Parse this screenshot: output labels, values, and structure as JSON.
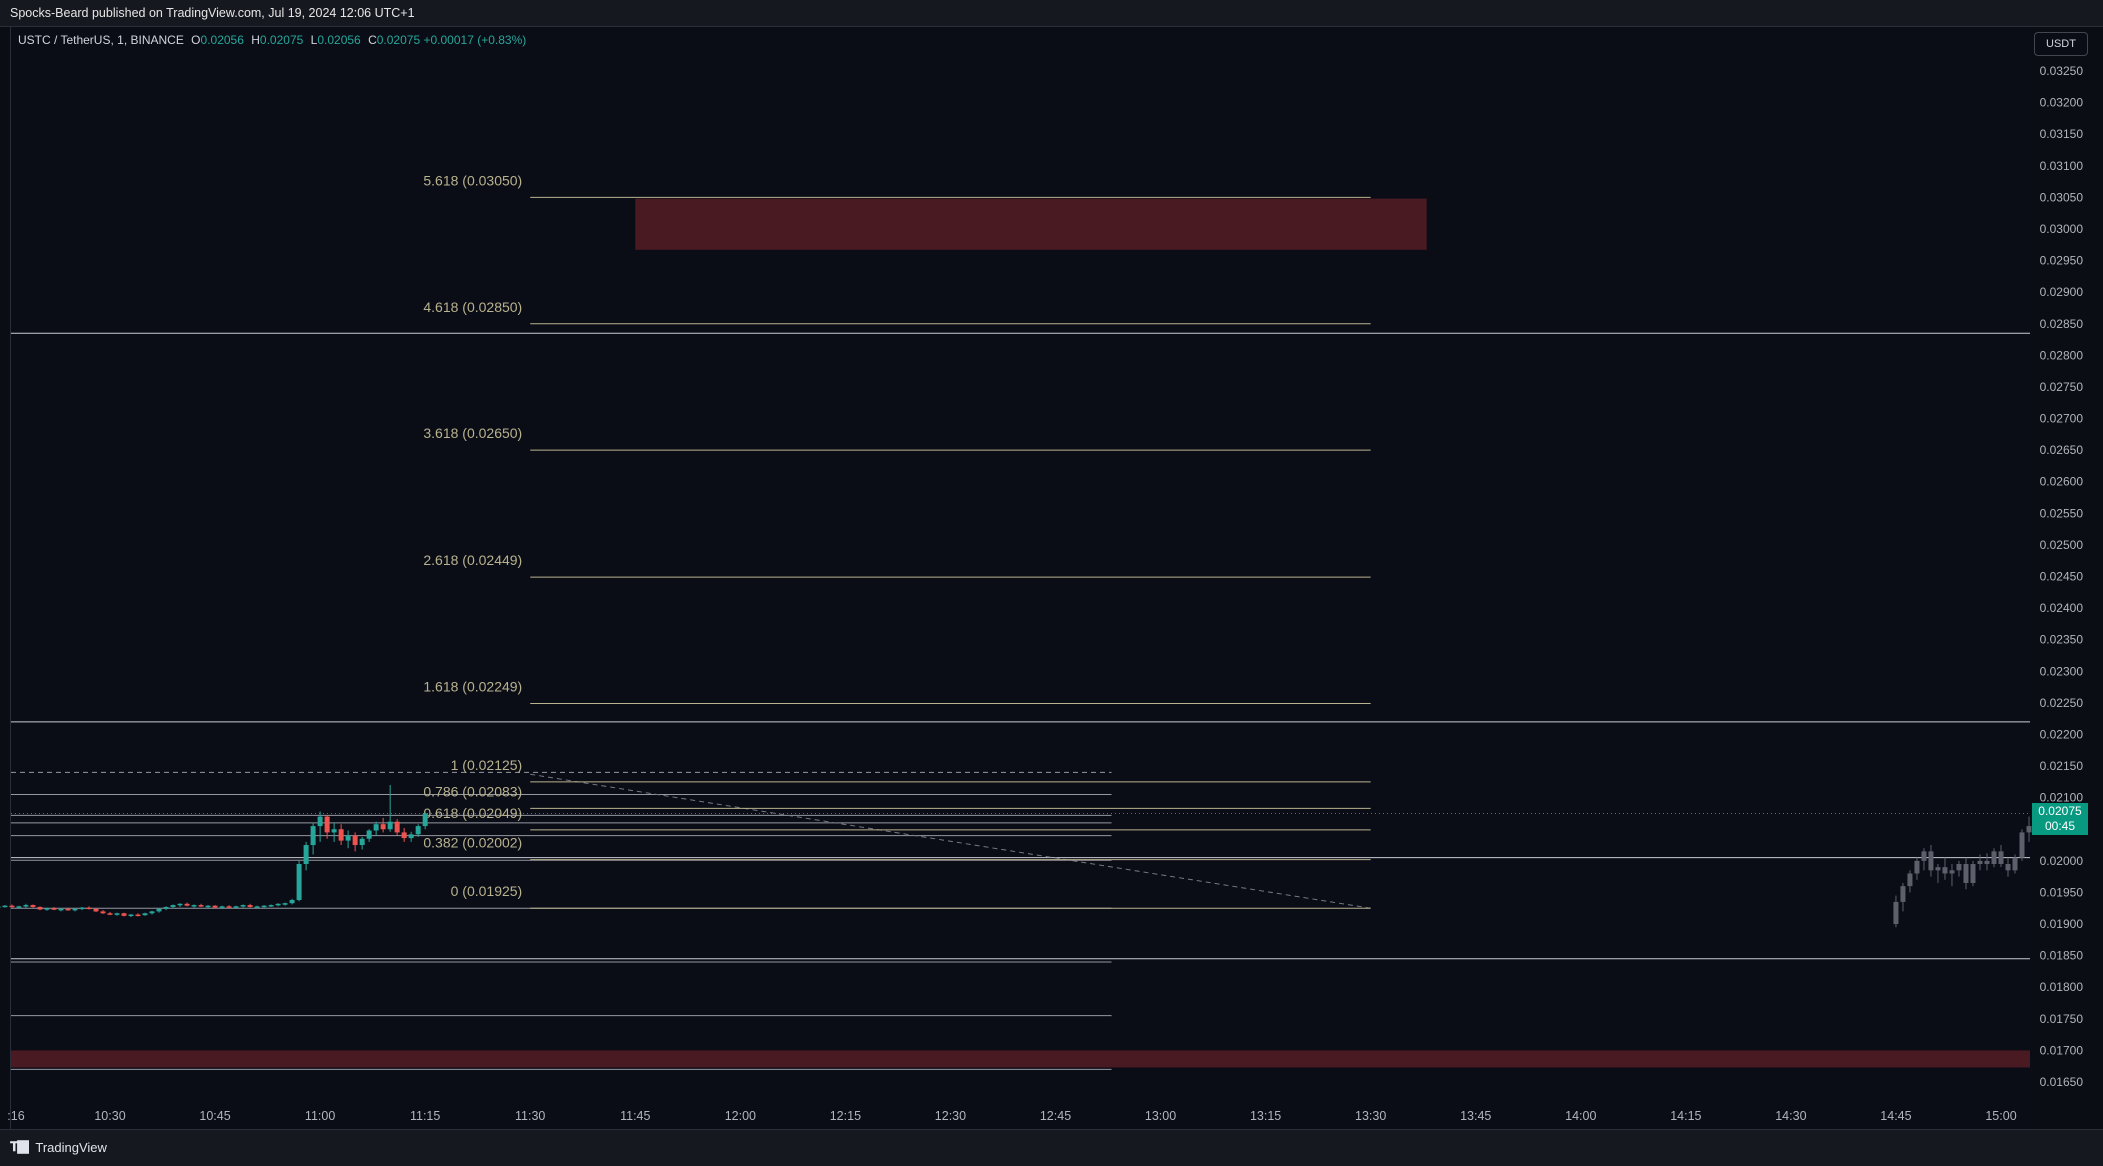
{
  "publish_line": "Spocks-Beard published on TradingView.com, Jul 19, 2024 12:06 UTC+1",
  "symbol": {
    "name": "USTC / TetherUS, 1, BINANCE",
    "open_label": "O",
    "open": "0.02056",
    "high_label": "H",
    "high": "0.02075",
    "low_label": "L",
    "low": "0.02056",
    "close_label": "C",
    "close": "0.02075",
    "change": "+0.00017 (+0.83%)"
  },
  "currency_button": "USDT",
  "price_badge": {
    "price": "0.02075",
    "countdown": "00:45"
  },
  "brand": "TradingView",
  "colors": {
    "up": "#26a69a",
    "down": "#ef5350",
    "zone": "#4a1a22",
    "fib": "#b8b28f",
    "badge": "#089981"
  },
  "chart_data": {
    "type": "candlestick",
    "y_axis": {
      "min": 0.0163,
      "max": 0.0327,
      "ticks": [
        "0.03250",
        "0.03200",
        "0.03150",
        "0.03100",
        "0.03050",
        "0.03000",
        "0.02950",
        "0.02900",
        "0.02850",
        "0.02800",
        "0.02750",
        "0.02700",
        "0.02650",
        "0.02600",
        "0.02550",
        "0.02500",
        "0.02450",
        "0.02400",
        "0.02350",
        "0.02300",
        "0.02250",
        "0.02200",
        "0.02150",
        "0.02100",
        "0.02050",
        "0.02000",
        "0.01950",
        "0.01900",
        "0.01850",
        "0.01800",
        "0.01750",
        "0.01700",
        "0.01650"
      ]
    },
    "x_axis": {
      "ticks": [
        ":16",
        "10:30",
        "10:45",
        "11:00",
        "11:15",
        "11:30",
        "11:45",
        "12:00",
        "12:15",
        "12:30",
        "12:45",
        "13:00",
        "13:15",
        "13:30",
        "13:45",
        "14:00",
        "14:15",
        "14:30",
        "14:45",
        "15:00"
      ],
      "tick_minutes": [
        616,
        630,
        645,
        660,
        675,
        690,
        705,
        720,
        735,
        750,
        765,
        780,
        795,
        810,
        825,
        840,
        855,
        870,
        885,
        900
      ]
    },
    "fib_levels": [
      {
        "label": "5.618 (0.03050)",
        "price": 0.0305
      },
      {
        "label": "4.618 (0.02850)",
        "price": 0.0285
      },
      {
        "label": "3.618 (0.02650)",
        "price": 0.0265
      },
      {
        "label": "2.618 (0.02449)",
        "price": 0.02449
      },
      {
        "label": "1.618 (0.02249)",
        "price": 0.02249
      },
      {
        "label": "1 (0.02125)",
        "price": 0.02125
      },
      {
        "label": "0.786 (0.02083)",
        "price": 0.02083
      },
      {
        "label": "0.618 (0.02049)",
        "price": 0.02049
      },
      {
        "label": "0.382 (0.02002)",
        "price": 0.02002
      },
      {
        "label": "0 (0.01925)",
        "price": 0.01925
      }
    ],
    "fib_range": {
      "t_start": 690,
      "t_end": 810
    },
    "horizontal_lines": [
      0.02835,
      0.0222,
      0.02005,
      0.01845
    ],
    "short_lines": [
      {
        "price": 0.0214,
        "t_start": 606,
        "t_end": 773,
        "dashed": true
      },
      {
        "price": 0.02105,
        "t_start": 606,
        "t_end": 773
      },
      {
        "price": 0.02072,
        "t_start": 606,
        "t_end": 773
      },
      {
        "price": 0.0206,
        "t_start": 606,
        "t_end": 773
      },
      {
        "price": 0.0204,
        "t_start": 606,
        "t_end": 773
      },
      {
        "price": 0.02001,
        "t_start": 606,
        "t_end": 773
      },
      {
        "price": 0.01925,
        "t_start": 606,
        "t_end": 773
      },
      {
        "price": 0.0184,
        "t_start": 606,
        "t_end": 773
      },
      {
        "price": 0.01755,
        "t_start": 606,
        "t_end": 773
      },
      {
        "price": 0.0167,
        "t_start": 606,
        "t_end": 773
      }
    ],
    "dashed_trend": {
      "t1": 690,
      "p1": 0.02137,
      "t2": 810,
      "p2": 0.01925
    },
    "zones": [
      {
        "t_start": 705,
        "t_end": 818,
        "p_top": 0.03048,
        "p_bottom": 0.02967
      },
      {
        "t_start": 606,
        "t_end": 924,
        "p_top": 0.017,
        "p_bottom": 0.01673
      }
    ],
    "current_price": 0.02075,
    "candles_t0": 606,
    "candles": [
      [
        0.01932,
        0.01934,
        0.01928,
        0.0193
      ],
      [
        0.0193,
        0.01932,
        0.01927,
        0.01931
      ],
      [
        0.01931,
        0.01935,
        0.01929,
        0.01934
      ],
      [
        0.01934,
        0.01936,
        0.01931,
        0.01932
      ],
      [
        0.01932,
        0.01933,
        0.01928,
        0.01929
      ],
      [
        0.01929,
        0.01931,
        0.01926,
        0.01927
      ],
      [
        0.01927,
        0.0193,
        0.01925,
        0.01929
      ],
      [
        0.01929,
        0.0193,
        0.01925,
        0.01926
      ],
      [
        0.01926,
        0.01929,
        0.01924,
        0.01928
      ],
      [
        0.01928,
        0.0193,
        0.01926,
        0.01929
      ],
      [
        0.01929,
        0.01931,
        0.01926,
        0.01927
      ],
      [
        0.01927,
        0.01929,
        0.01925,
        0.01928
      ],
      [
        0.01928,
        0.01932,
        0.01926,
        0.0193
      ],
      [
        0.0193,
        0.01931,
        0.01926,
        0.01927
      ],
      [
        0.01927,
        0.01928,
        0.01922,
        0.01923
      ],
      [
        0.01923,
        0.01926,
        0.01921,
        0.01925
      ],
      [
        0.01925,
        0.01927,
        0.01922,
        0.01923
      ],
      [
        0.01923,
        0.01925,
        0.0192,
        0.01924
      ],
      [
        0.01924,
        0.01926,
        0.01921,
        0.01922
      ],
      [
        0.01922,
        0.01925,
        0.0192,
        0.01924
      ],
      [
        0.01924,
        0.01927,
        0.01922,
        0.01926
      ],
      [
        0.01926,
        0.01928,
        0.01923,
        0.01924
      ],
      [
        0.01924,
        0.01925,
        0.01919,
        0.0192
      ],
      [
        0.0192,
        0.01922,
        0.01916,
        0.01917
      ],
      [
        0.01917,
        0.01919,
        0.01914,
        0.01915
      ],
      [
        0.01915,
        0.01918,
        0.01913,
        0.01917
      ],
      [
        0.01917,
        0.01918,
        0.01912,
        0.01913
      ],
      [
        0.01913,
        0.01916,
        0.01911,
        0.01915
      ],
      [
        0.01915,
        0.01917,
        0.01912,
        0.01914
      ],
      [
        0.01914,
        0.01918,
        0.01913,
        0.01917
      ],
      [
        0.01917,
        0.01921,
        0.01915,
        0.0192
      ],
      [
        0.0192,
        0.01925,
        0.01918,
        0.01924
      ],
      [
        0.01924,
        0.01928,
        0.01922,
        0.01927
      ],
      [
        0.01927,
        0.01931,
        0.01925,
        0.0193
      ],
      [
        0.0193,
        0.01933,
        0.01927,
        0.01932
      ],
      [
        0.01932,
        0.01934,
        0.01928,
        0.01929
      ],
      [
        0.01929,
        0.01931,
        0.01926,
        0.0193
      ],
      [
        0.0193,
        0.01932,
        0.01927,
        0.01928
      ],
      [
        0.01928,
        0.0193,
        0.01925,
        0.01929
      ],
      [
        0.01929,
        0.0193,
        0.01925,
        0.01926
      ],
      [
        0.01926,
        0.01929,
        0.01924,
        0.01928
      ],
      [
        0.01928,
        0.0193,
        0.01926,
        0.01927
      ],
      [
        0.01927,
        0.01929,
        0.01925,
        0.01928
      ],
      [
        0.01928,
        0.01931,
        0.01926,
        0.0193
      ],
      [
        0.0193,
        0.01932,
        0.01926,
        0.01927
      ],
      [
        0.01927,
        0.01929,
        0.01925,
        0.01928
      ],
      [
        0.01928,
        0.0193,
        0.01926,
        0.01929
      ],
      [
        0.01929,
        0.01931,
        0.01927,
        0.0193
      ],
      [
        0.0193,
        0.01933,
        0.01928,
        0.01932
      ],
      [
        0.01932,
        0.01934,
        0.01929,
        0.01933
      ],
      [
        0.01933,
        0.0194,
        0.01931,
        0.01938
      ],
      [
        0.01938,
        0.02,
        0.01936,
        0.01995
      ],
      [
        0.01995,
        0.0203,
        0.01985,
        0.02025
      ],
      [
        0.02025,
        0.0206,
        0.0201,
        0.02055
      ],
      [
        0.02055,
        0.02078,
        0.0203,
        0.0207
      ],
      [
        0.0207,
        0.02072,
        0.02035,
        0.02045
      ],
      [
        0.02045,
        0.0206,
        0.0203,
        0.0205
      ],
      [
        0.0205,
        0.02058,
        0.02025,
        0.02032
      ],
      [
        0.02032,
        0.02048,
        0.0202,
        0.0204
      ],
      [
        0.0204,
        0.02045,
        0.02015,
        0.02025
      ],
      [
        0.02025,
        0.02038,
        0.02018,
        0.02035
      ],
      [
        0.02035,
        0.0205,
        0.0203,
        0.02048
      ],
      [
        0.02048,
        0.02062,
        0.0204,
        0.02058
      ],
      [
        0.02058,
        0.02068,
        0.02045,
        0.0205
      ],
      [
        0.0205,
        0.0212,
        0.02046,
        0.02062
      ],
      [
        0.02062,
        0.02066,
        0.0204,
        0.02045
      ],
      [
        0.02045,
        0.02052,
        0.0203,
        0.02036
      ],
      [
        0.02036,
        0.02046,
        0.0203,
        0.02042
      ],
      [
        0.02042,
        0.02058,
        0.02038,
        0.02055
      ],
      [
        0.02055,
        0.02077,
        0.0205,
        0.02075
      ]
    ],
    "ghost_t0": 885,
    "ghost": [
      [
        0.019,
        0.01945,
        0.01895,
        0.01935
      ],
      [
        0.01935,
        0.01965,
        0.0192,
        0.0196
      ],
      [
        0.0196,
        0.01985,
        0.0195,
        0.0198
      ],
      [
        0.0198,
        0.02005,
        0.0197,
        0.02
      ],
      [
        0.02,
        0.0202,
        0.01985,
        0.02015
      ],
      [
        0.02015,
        0.02025,
        0.01975,
        0.01985
      ],
      [
        0.01985,
        0.01995,
        0.01965,
        0.0199
      ],
      [
        0.0199,
        0.02005,
        0.0197,
        0.0198
      ],
      [
        0.0198,
        0.01995,
        0.0196,
        0.01985
      ],
      [
        0.01985,
        0.02,
        0.01975,
        0.01995
      ],
      [
        0.01995,
        0.02005,
        0.01955,
        0.01965
      ],
      [
        0.01965,
        0.02,
        0.0196,
        0.01995
      ],
      [
        0.01995,
        0.0201,
        0.01985,
        0.02
      ],
      [
        0.02,
        0.02012,
        0.01985,
        0.01995
      ],
      [
        0.01995,
        0.0202,
        0.0199,
        0.02015
      ],
      [
        0.02015,
        0.02025,
        0.0199,
        0.01995
      ],
      [
        0.01995,
        0.02005,
        0.01975,
        0.01985
      ],
      [
        0.01985,
        0.0201,
        0.0198,
        0.02005
      ],
      [
        0.02005,
        0.0205,
        0.02,
        0.02045
      ],
      [
        0.02045,
        0.0207,
        0.0203,
        0.02055
      ]
    ]
  }
}
